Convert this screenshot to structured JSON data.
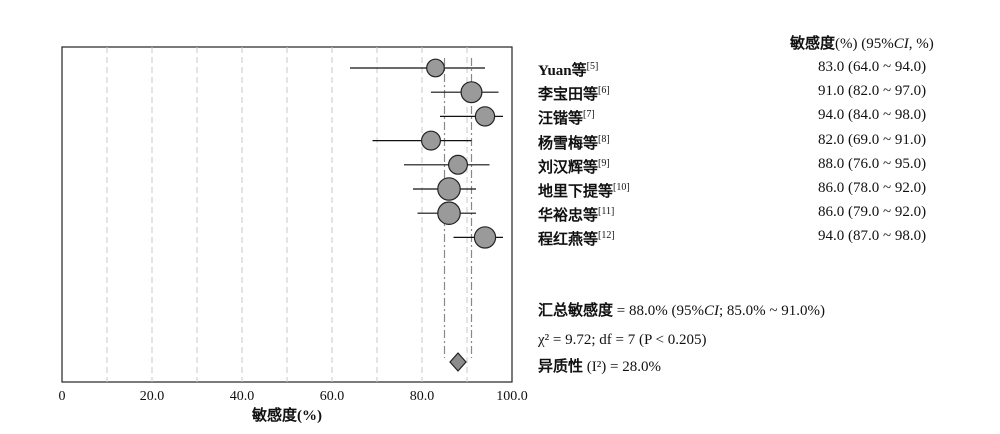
{
  "chart_data": {
    "type": "forest",
    "xlabel": "敏感度(%)",
    "xlim": [
      0,
      100
    ],
    "xticks": [
      "0",
      "20.0",
      "40.0",
      "60.0",
      "80.0",
      "100.0"
    ],
    "header": {
      "col_label": "敏感度",
      "col_suffix": "(%) (95%",
      "ci_italic": "CI",
      "col_end": ", %)"
    },
    "studies": [
      {
        "name": "Yuan等",
        "ref": "[5]",
        "estimate": 83.0,
        "lower": 64.0,
        "upper": 94.0,
        "weight": 0.7,
        "text": "83.0 (64.0 ~ 94.0)"
      },
      {
        "name": "李宝田等",
        "ref": "[6]",
        "estimate": 91.0,
        "lower": 82.0,
        "upper": 97.0,
        "weight": 1.1,
        "text": "91.0 (82.0 ~ 97.0)"
      },
      {
        "name": "汪锴等",
        "ref": "[7]",
        "estimate": 94.0,
        "lower": 84.0,
        "upper": 98.0,
        "weight": 0.9,
        "text": "94.0 (84.0 ~ 98.0)"
      },
      {
        "name": "杨雪梅等",
        "ref": "[8]",
        "estimate": 82.0,
        "lower": 69.0,
        "upper": 91.0,
        "weight": 0.85,
        "text": "82.0 (69.0 ~ 91.0)"
      },
      {
        "name": "刘汉辉等",
        "ref": "[9]",
        "estimate": 88.0,
        "lower": 76.0,
        "upper": 95.0,
        "weight": 0.85,
        "text": "88.0 (76.0 ~ 95.0)"
      },
      {
        "name": "地里下提等",
        "ref": "[10]",
        "estimate": 86.0,
        "lower": 78.0,
        "upper": 92.0,
        "weight": 1.3,
        "text": "86.0 (78.0 ~ 92.0)"
      },
      {
        "name": "华裕忠等",
        "ref": "[11]",
        "estimate": 86.0,
        "lower": 79.0,
        "upper": 92.0,
        "weight": 1.3,
        "text": "86.0 (79.0 ~ 92.0)"
      },
      {
        "name": "程红燕等",
        "ref": "[12]",
        "estimate": 94.0,
        "lower": 87.0,
        "upper": 98.0,
        "weight": 1.15,
        "text": "94.0 (87.0 ~ 98.0)"
      }
    ],
    "pooled": {
      "estimate": 88.0,
      "lower": 85.0,
      "upper": 91.0
    },
    "summary": {
      "line1_bold": "汇总敏感度",
      "line1_a": " = 88.0% (95%",
      "line1_ci": "CI",
      "line1_b": ";  85.0% ~ 91.0%)",
      "line2": "χ² = 9.72;  df = 7 (P < 0.205)",
      "line3_bold": "异质性",
      "line3_rest": " (I²) = 28.0%"
    }
  }
}
